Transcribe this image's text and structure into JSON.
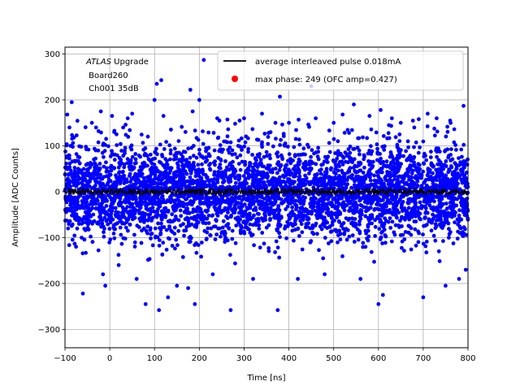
{
  "chart_data": {
    "type": "scatter",
    "xlabel": "Time [ns]",
    "ylabel": "Amplitude [ADC Counts]",
    "xlim": [
      -100,
      800
    ],
    "ylim": [
      -340,
      315
    ],
    "xticks": [
      -100,
      0,
      100,
      200,
      300,
      400,
      500,
      600,
      700,
      800
    ],
    "yticks": [
      -300,
      -200,
      -100,
      0,
      100,
      200,
      300
    ],
    "grid": true,
    "legend_position": "top-right",
    "annotation": {
      "experiment": "ATLAS",
      "experiment_suffix": " Upgrade",
      "line2": " Board260",
      "line3": " Ch001 35dB"
    },
    "series": [
      {
        "name": "average interleaved pulse 0.018mA",
        "kind": "line",
        "color": "#000000",
        "description_values": {
          "mean": 0,
          "band": [
            -8,
            8
          ]
        }
      },
      {
        "name": "max phase: 249 (OFC amp=0.427)",
        "kind": "marker",
        "color": "#ff0000"
      },
      {
        "name": "",
        "kind": "scatter",
        "color": "#0000ff",
        "dense_band": {
          "x_range": [
            -100,
            800
          ],
          "core_y": [
            -100,
            100
          ]
        },
        "outliers": [
          [
            -95,
            168
          ],
          [
            -90,
            140
          ],
          [
            -85,
            195
          ],
          [
            -80,
            118
          ],
          [
            -60,
            -222
          ],
          [
            -40,
            150
          ],
          [
            -25,
            132
          ],
          [
            -20,
            175
          ],
          [
            -15,
            -180
          ],
          [
            -10,
            -205
          ],
          [
            5,
            165
          ],
          [
            10,
            130
          ],
          [
            15,
            125
          ],
          [
            20,
            -160
          ],
          [
            30,
            140
          ],
          [
            40,
            160
          ],
          [
            50,
            170
          ],
          [
            60,
            -190
          ],
          [
            80,
            -245
          ],
          [
            85,
            120
          ],
          [
            100,
            200
          ],
          [
            105,
            235
          ],
          [
            110,
            -258
          ],
          [
            115,
            243
          ],
          [
            120,
            165
          ],
          [
            130,
            -230
          ],
          [
            150,
            -205
          ],
          [
            175,
            -210
          ],
          [
            180,
            222
          ],
          [
            185,
            175
          ],
          [
            190,
            -245
          ],
          [
            200,
            200
          ],
          [
            210,
            287
          ],
          [
            230,
            -180
          ],
          [
            240,
            160
          ],
          [
            245,
            155
          ],
          [
            270,
            -258
          ],
          [
            280,
            148
          ],
          [
            290,
            155
          ],
          [
            300,
            160
          ],
          [
            320,
            -190
          ],
          [
            340,
            170
          ],
          [
            370,
            150
          ],
          [
            375,
            -258
          ],
          [
            380,
            207
          ],
          [
            400,
            150
          ],
          [
            420,
            -190
          ],
          [
            450,
            230
          ],
          [
            460,
            160
          ],
          [
            480,
            -180
          ],
          [
            500,
            150
          ],
          [
            520,
            168
          ],
          [
            545,
            190
          ],
          [
            560,
            -190
          ],
          [
            580,
            165
          ],
          [
            600,
            -245
          ],
          [
            605,
            178
          ],
          [
            610,
            -225
          ],
          [
            630,
            160
          ],
          [
            650,
            150
          ],
          [
            680,
            140
          ],
          [
            690,
            158
          ],
          [
            700,
            -230
          ],
          [
            710,
            170
          ],
          [
            730,
            160
          ],
          [
            750,
            -205
          ],
          [
            760,
            155
          ],
          [
            780,
            -190
          ],
          [
            790,
            187
          ],
          [
            795,
            -170
          ]
        ]
      }
    ]
  }
}
